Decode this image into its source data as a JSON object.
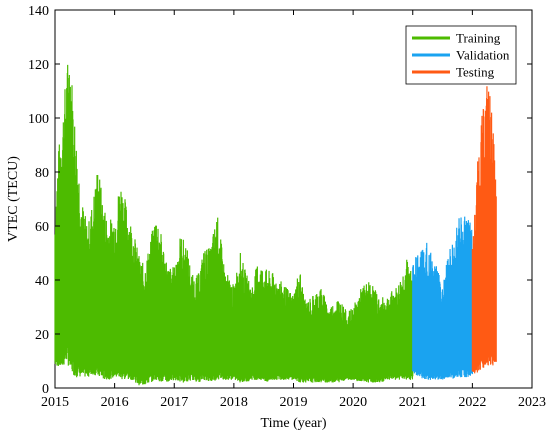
{
  "chart_data": {
    "type": "line",
    "title": "",
    "xlabel": "Time (year)",
    "ylabel": "VTEC (TECU)",
    "xlim": [
      2015,
      2023
    ],
    "ylim": [
      0,
      140
    ],
    "xticks": [
      "2015",
      "2016",
      "2017",
      "2018",
      "2019",
      "2020",
      "2021",
      "2022",
      "2023"
    ],
    "yticks": [
      "0",
      "20",
      "40",
      "60",
      "80",
      "100",
      "120",
      "140"
    ],
    "grid": false,
    "legend_position": "top-right",
    "series": [
      {
        "name": "Training",
        "color": "#4DBB00",
        "x": [
          2015.0,
          2015.05,
          2015.12,
          2015.2,
          2015.25,
          2015.3,
          2015.35,
          2015.45,
          2015.55,
          2015.65,
          2015.72,
          2015.8,
          2015.9,
          2016.0,
          2016.1,
          2016.2,
          2016.3,
          2016.4,
          2016.5,
          2016.6,
          2016.7,
          2016.8,
          2016.9,
          2017.0,
          2017.1,
          2017.2,
          2017.3,
          2017.4,
          2017.5,
          2017.6,
          2017.72,
          2017.85,
          2018.0,
          2018.1,
          2018.2,
          2018.3,
          2018.4,
          2018.55,
          2018.7,
          2018.85,
          2019.0,
          2019.1,
          2019.2,
          2019.3,
          2019.45,
          2019.6,
          2019.75,
          2019.9,
          2020.0,
          2020.15,
          2020.3,
          2020.45,
          2020.6,
          2020.75,
          2020.9,
          2021.0
        ],
        "max": [
          65,
          87,
          100,
          120,
          128,
          110,
          95,
          70,
          60,
          72,
          84,
          70,
          62,
          65,
          78,
          68,
          60,
          50,
          45,
          55,
          66,
          55,
          45,
          45,
          57,
          54,
          42,
          42,
          52,
          52,
          65,
          44,
          38,
          51,
          43,
          38,
          47,
          44,
          42,
          38,
          35,
          45,
          32,
          34,
          38,
          30,
          34,
          28,
          30,
          38,
          40,
          33,
          35,
          38,
          48,
          42
        ],
        "min": [
          8,
          8,
          7,
          10,
          6,
          5,
          4,
          4,
          4,
          5,
          4,
          3,
          3,
          4,
          3,
          3,
          3,
          1,
          1,
          2,
          3,
          2,
          2,
          3,
          2,
          2,
          3,
          2,
          3,
          2,
          3,
          3,
          3,
          2,
          2,
          3,
          3,
          2,
          3,
          3,
          3,
          2,
          2,
          2,
          2,
          2,
          2,
          3,
          3,
          2,
          2,
          2,
          3,
          3,
          3,
          3
        ]
      },
      {
        "name": "Validation",
        "color": "#1AA3F0",
        "x": [
          2021.0,
          2021.1,
          2021.2,
          2021.3,
          2021.4,
          2021.5,
          2021.6,
          2021.7,
          2021.8,
          2021.9,
          2022.0
        ],
        "max": [
          48,
          50,
          55,
          52,
          45,
          38,
          50,
          56,
          65,
          64,
          60
        ],
        "min": [
          5,
          4,
          3,
          3,
          3,
          3,
          4,
          3,
          4,
          4,
          4
        ]
      },
      {
        "name": "Testing",
        "color": "#FF5A14",
        "x": [
          2022.0,
          2022.05,
          2022.1,
          2022.15,
          2022.2,
          2022.25,
          2022.3,
          2022.35,
          2022.4
        ],
        "max": [
          52,
          70,
          88,
          100,
          105,
          115,
          110,
          95,
          75
        ],
        "min": [
          5,
          5,
          6,
          7,
          7,
          8,
          8,
          8,
          9
        ]
      }
    ]
  }
}
